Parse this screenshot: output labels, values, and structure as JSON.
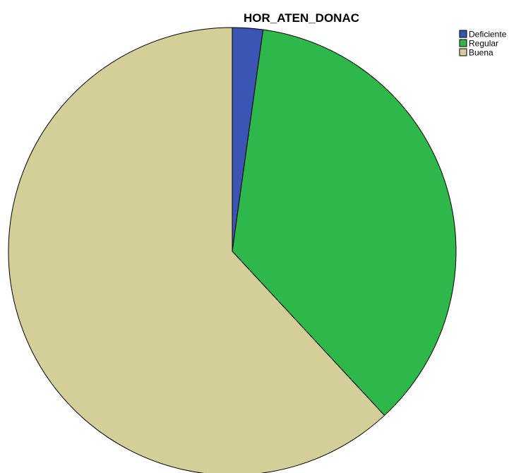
{
  "chart_data": {
    "type": "pie",
    "title": "HOR_ATEN_DONAC",
    "categories": [
      "Deficiente",
      "Regular",
      "Buena"
    ],
    "values": [
      2.2,
      35.9,
      61.9
    ],
    "colors": [
      "#3a55b4",
      "#2eb84a",
      "#d4cf99"
    ],
    "start_angle_deg": 0,
    "direction": "clockwise",
    "legend": {
      "position": "top-right",
      "entries": [
        "Deficiente",
        "Regular",
        "Buena"
      ]
    }
  }
}
